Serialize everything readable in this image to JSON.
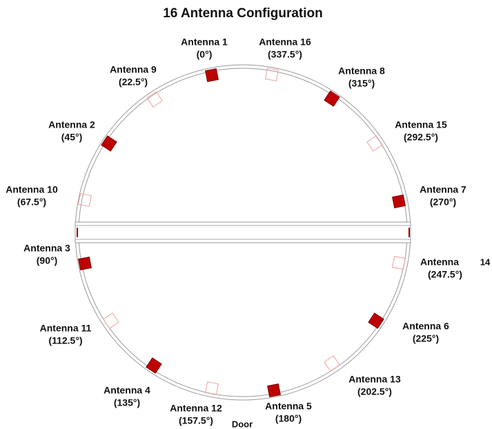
{
  "title": "16 Antenna Configuration",
  "antennas": [
    {
      "name": "Antenna 1",
      "angle": "(0°)"
    },
    {
      "name": "Antenna 2",
      "angle": "(45°)"
    },
    {
      "name": "Antenna 3",
      "angle": "(90°)"
    },
    {
      "name": "Antenna 4",
      "angle": "(135°)"
    },
    {
      "name": "Antenna 5",
      "angle": "(180°)"
    },
    {
      "name": "Antenna 6",
      "angle": "(225°)"
    },
    {
      "name": "Antenna 7",
      "angle": "(270°)"
    },
    {
      "name": "Antenna 8",
      "angle": "(315°)"
    },
    {
      "name": "Antenna 9",
      "angle": "(22.5°)"
    },
    {
      "name": "Antenna 10",
      "angle": "(67.5°)"
    },
    {
      "name": "Antenna 11",
      "angle": "(112.5°)"
    },
    {
      "name": "Antenna 12",
      "angle": "(157.5°)"
    },
    {
      "name": "Antenna 13",
      "angle": "(202.5°)"
    },
    {
      "name": "Antenna",
      "suffix": "14",
      "angle": "(247.5°)"
    },
    {
      "name": "Antenna 15",
      "angle": "(292.5°)"
    },
    {
      "name": "Antenna 16",
      "angle": "(337.5°)"
    }
  ],
  "door": "Door"
}
